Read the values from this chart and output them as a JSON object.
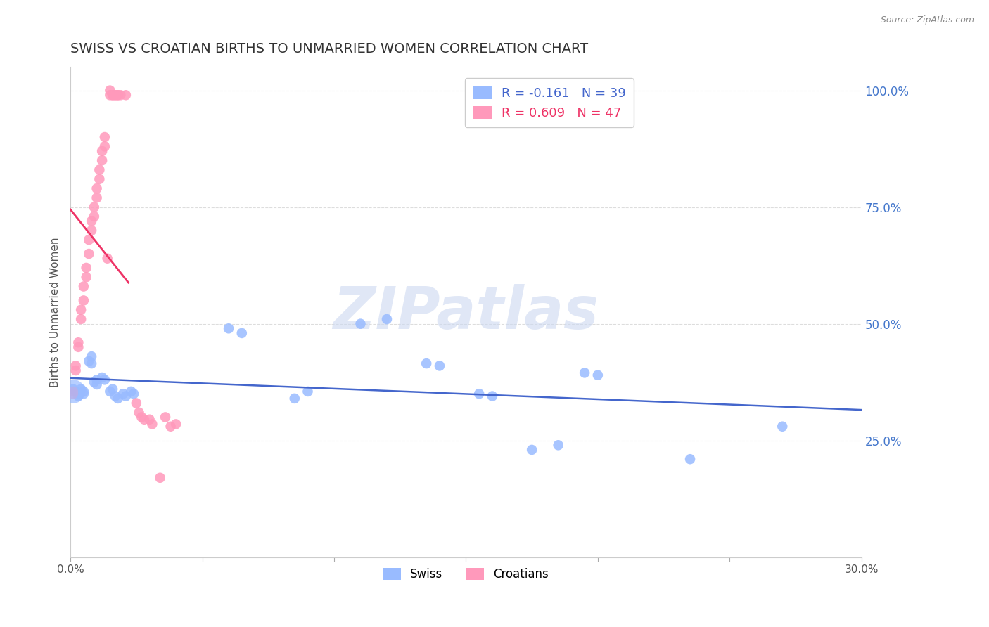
{
  "title": "SWISS VS CROATIAN BIRTHS TO UNMARRIED WOMEN CORRELATION CHART",
  "source": "Source: ZipAtlas.com",
  "ylabel": "Births to Unmarried Women",
  "xlim": [
    0.0,
    0.3
  ],
  "ylim": [
    0.0,
    1.05
  ],
  "x_ticks": [
    0.0,
    0.05,
    0.1,
    0.15,
    0.2,
    0.25,
    0.3
  ],
  "x_tick_labels": [
    "0.0%",
    "",
    "",
    "",
    "",
    "",
    "30.0%"
  ],
  "y_ticks_right": [
    0.25,
    0.5,
    0.75,
    1.0
  ],
  "y_tick_labels_right": [
    "25.0%",
    "50.0%",
    "75.0%",
    "100.0%"
  ],
  "swiss_color": "#99bbff",
  "croatian_color": "#ff99bb",
  "swiss_line_color": "#4466cc",
  "croatian_line_color": "#ee3366",
  "legend_swiss_R": "-0.161",
  "legend_swiss_N": "39",
  "legend_croatian_R": "0.609",
  "legend_croatian_N": "47",
  "watermark": "ZIPatlas",
  "watermark_color": "#ccd8f0",
  "swiss_points": [
    [
      0.001,
      0.36
    ],
    [
      0.002,
      0.355
    ],
    [
      0.003,
      0.35
    ],
    [
      0.003,
      0.345
    ],
    [
      0.004,
      0.36
    ],
    [
      0.005,
      0.355
    ],
    [
      0.005,
      0.35
    ],
    [
      0.007,
      0.42
    ],
    [
      0.008,
      0.43
    ],
    [
      0.008,
      0.415
    ],
    [
      0.009,
      0.375
    ],
    [
      0.01,
      0.38
    ],
    [
      0.01,
      0.37
    ],
    [
      0.012,
      0.385
    ],
    [
      0.013,
      0.38
    ],
    [
      0.015,
      0.355
    ],
    [
      0.016,
      0.36
    ],
    [
      0.017,
      0.345
    ],
    [
      0.018,
      0.34
    ],
    [
      0.02,
      0.35
    ],
    [
      0.021,
      0.345
    ],
    [
      0.023,
      0.355
    ],
    [
      0.024,
      0.35
    ],
    [
      0.06,
      0.49
    ],
    [
      0.065,
      0.48
    ],
    [
      0.085,
      0.34
    ],
    [
      0.09,
      0.355
    ],
    [
      0.11,
      0.5
    ],
    [
      0.12,
      0.51
    ],
    [
      0.135,
      0.415
    ],
    [
      0.14,
      0.41
    ],
    [
      0.155,
      0.35
    ],
    [
      0.16,
      0.345
    ],
    [
      0.175,
      0.23
    ],
    [
      0.185,
      0.24
    ],
    [
      0.195,
      0.395
    ],
    [
      0.2,
      0.39
    ],
    [
      0.235,
      0.21
    ],
    [
      0.27,
      0.28
    ]
  ],
  "croatian_points": [
    [
      0.001,
      0.35
    ],
    [
      0.001,
      0.355
    ],
    [
      0.002,
      0.4
    ],
    [
      0.002,
      0.41
    ],
    [
      0.003,
      0.45
    ],
    [
      0.003,
      0.46
    ],
    [
      0.004,
      0.51
    ],
    [
      0.004,
      0.53
    ],
    [
      0.005,
      0.55
    ],
    [
      0.005,
      0.58
    ],
    [
      0.006,
      0.6
    ],
    [
      0.006,
      0.62
    ],
    [
      0.007,
      0.65
    ],
    [
      0.007,
      0.68
    ],
    [
      0.008,
      0.7
    ],
    [
      0.008,
      0.72
    ],
    [
      0.009,
      0.73
    ],
    [
      0.009,
      0.75
    ],
    [
      0.01,
      0.77
    ],
    [
      0.01,
      0.79
    ],
    [
      0.011,
      0.81
    ],
    [
      0.011,
      0.83
    ],
    [
      0.012,
      0.85
    ],
    [
      0.012,
      0.87
    ],
    [
      0.013,
      0.88
    ],
    [
      0.013,
      0.9
    ],
    [
      0.014,
      0.64
    ],
    [
      0.015,
      0.99
    ],
    [
      0.015,
      1.0
    ],
    [
      0.016,
      0.99
    ],
    [
      0.016,
      0.99
    ],
    [
      0.017,
      0.99
    ],
    [
      0.017,
      0.99
    ],
    [
      0.018,
      0.99
    ],
    [
      0.018,
      0.99
    ],
    [
      0.019,
      0.99
    ],
    [
      0.021,
      0.99
    ],
    [
      0.025,
      0.33
    ],
    [
      0.026,
      0.31
    ],
    [
      0.027,
      0.3
    ],
    [
      0.028,
      0.295
    ],
    [
      0.03,
      0.295
    ],
    [
      0.031,
      0.285
    ],
    [
      0.034,
      0.17
    ],
    [
      0.036,
      0.3
    ],
    [
      0.038,
      0.28
    ],
    [
      0.04,
      0.285
    ]
  ],
  "swiss_marker_size": 110,
  "croatian_marker_size": 110,
  "title_fontsize": 14,
  "axis_label_fontsize": 11,
  "tick_fontsize": 11,
  "legend_fontsize": 13,
  "background_color": "#ffffff",
  "grid_color": "#dddddd",
  "title_color": "#333333",
  "right_tick_color": "#4477cc"
}
